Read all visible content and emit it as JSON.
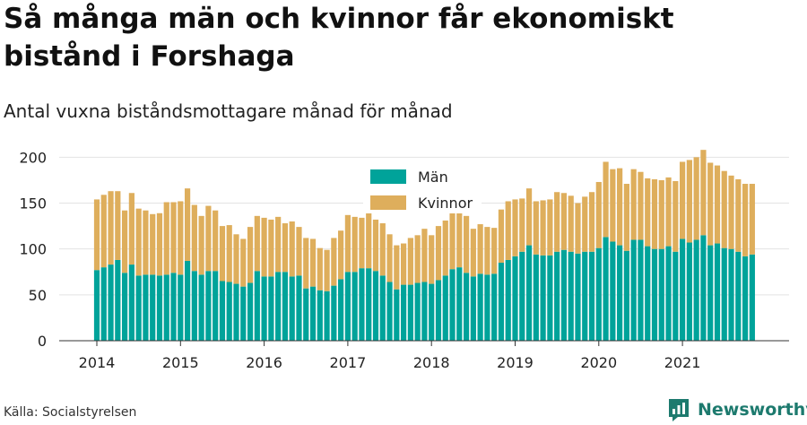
{
  "title": "Så många män och kvinnor får ekonomiskt bistånd i Forshaga",
  "subtitle": "Antal vuxna biståndsmottagare månad för månad",
  "source": "Källa: Socialstyrelsen",
  "brand": {
    "name": "Newsworthy",
    "icon": "newsworthy-logo-icon",
    "color": "#1d7a6e"
  },
  "chart_data": {
    "type": "bar",
    "stacked": true,
    "x_start": "2014-01",
    "x_end": "2021-11",
    "x_ticks": [
      "2014",
      "2015",
      "2016",
      "2017",
      "2018",
      "2019",
      "2020",
      "2021"
    ],
    "y_ticks": [
      0,
      50,
      100,
      150,
      200
    ],
    "ylim": [
      0,
      215
    ],
    "grid": "horizontal",
    "legend_position": "top-center",
    "series": [
      {
        "name": "Män",
        "color": "#00a39a",
        "values": [
          77,
          80,
          83,
          88,
          74,
          83,
          71,
          72,
          72,
          71,
          72,
          74,
          72,
          87,
          76,
          72,
          76,
          76,
          65,
          64,
          62,
          59,
          63,
          76,
          70,
          70,
          75,
          75,
          70,
          71,
          57,
          59,
          55,
          54,
          60,
          67,
          75,
          75,
          79,
          79,
          76,
          71,
          64,
          56,
          61,
          61,
          63,
          64,
          62,
          66,
          71,
          78,
          80,
          74,
          70,
          73,
          72,
          73,
          85,
          88,
          92,
          97,
          104,
          94,
          93,
          93,
          97,
          99,
          97,
          95,
          97,
          97,
          101,
          113,
          108,
          104,
          98,
          110,
          110,
          103,
          100,
          100,
          103,
          97,
          111,
          107,
          110,
          115,
          104,
          106,
          101,
          100,
          97,
          92,
          94
        ]
      },
      {
        "name": "Kvinnor",
        "color": "#deae5c",
        "values": [
          77,
          79,
          80,
          75,
          68,
          78,
          73,
          70,
          66,
          68,
          79,
          77,
          80,
          79,
          72,
          64,
          71,
          66,
          60,
          62,
          54,
          52,
          61,
          60,
          64,
          62,
          60,
          53,
          60,
          53,
          55,
          52,
          46,
          45,
          52,
          53,
          62,
          60,
          55,
          61,
          56,
          57,
          52,
          48,
          45,
          51,
          52,
          58,
          53,
          59,
          60,
          64,
          70,
          62,
          52,
          54,
          52,
          50,
          58,
          64,
          62,
          58,
          62,
          58,
          60,
          61,
          65,
          62,
          61,
          55,
          60,
          65,
          72,
          82,
          79,
          84,
          73,
          77,
          74,
          74,
          76,
          75,
          75,
          77,
          84,
          90,
          90,
          93,
          90,
          85,
          84,
          80,
          79,
          79,
          77
        ]
      }
    ]
  }
}
